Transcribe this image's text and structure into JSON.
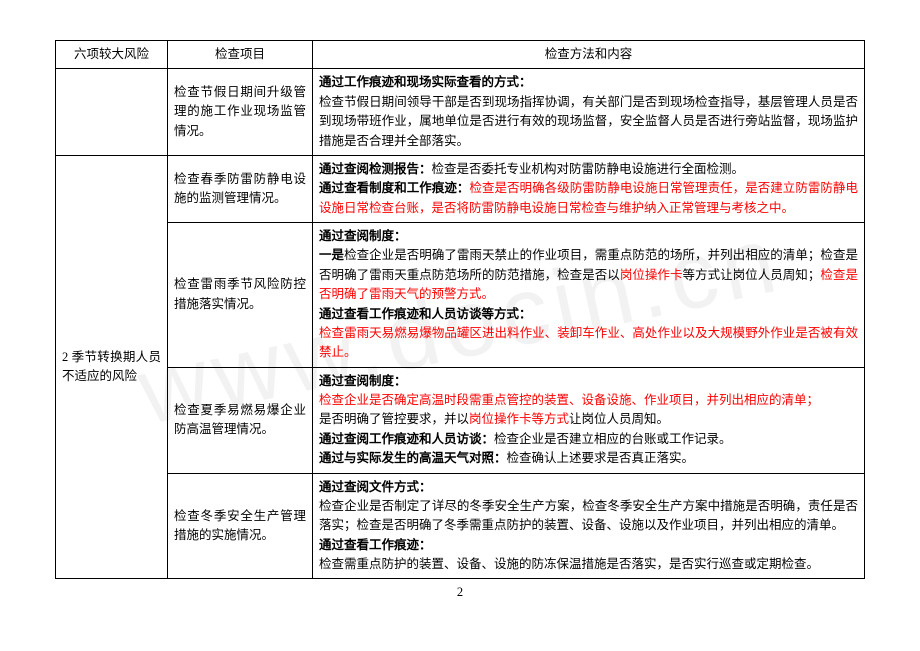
{
  "watermark": "www.docin.cn",
  "pageNumber": "2",
  "header": {
    "c1": "六项较大风险",
    "c2": "检查项目",
    "c3": "检查方法和内容"
  },
  "colA": {
    "row2": "2 季节转换期人员不适应的风险"
  },
  "colB": {
    "r1": "检查节假日期间升级管理的施工作业现场监管情况。",
    "r2": "检查春季防雷防静电设施的监测管理情况。",
    "r3": "检查雷雨季节风险防控措施落实情况。",
    "r4": "检查夏季易燃易爆企业防高温管理情况。",
    "r5": "检查冬季安全生产管理措施的实施情况。"
  },
  "colC": {
    "r1": {
      "l1": "通过工作痕迹和现场实际查看的方式：",
      "l2": "检查节假日期间领导干部是否到现场指挥协调，有关部门是否到现场检查指导，基层管理人员是否到现场带班作业，属地单位是否进行有效的现场监督，安全监督人员是否进行旁站监督，现场监护措施是否合理并全部落实。"
    },
    "r2": {
      "l1a": "通过查阅检测报告：",
      "l1b": "检查是否委托专业机构对防雷防静电设施进行全面检测。",
      "l2a": "通过查看制度和工作痕迹：",
      "l2b": "检查是否明确各级防雷防静电设施日常管理责任，是否建立防雷防静电设施日常检查台账，是否将防雷防静电设施日常检查与维护纳入正常管理与考核之中。"
    },
    "r3": {
      "l1": "通过查阅制度：",
      "l2a": "一是",
      "l2b": "检查企业是否明确了雷雨天禁止的作业项目，需重点防范的场所，并列出相应的清单；检查是否明确了雷雨天重点防范场所的防范措施，检查是否以",
      "l2c": "岗位操作卡",
      "l2d": "等方式让岗位人员周知；",
      "l2e": "检查是否明确了雷雨天气的预警方式。",
      "l3": "通过查看工作痕迹和人员访谈等方式：",
      "l4": "检查雷雨天易燃易爆物品罐区进出料作业、装卸车作业、高处作业以及大规模野外作业是否被有效禁止。"
    },
    "r4": {
      "l1": "通过查阅制度：",
      "l2a": "检查企业是否确定高温时段需重点管控的装置、设备设施、作业项目，并列出相应的清单；",
      "l2b": "是否明确了管控要求，并以",
      "l2c": "岗位操作卡等方式",
      "l2d": "让岗位人员周知。",
      "l3a": "通过查阅工作痕迹和人员访谈：",
      "l3b": "检查企业是否建立相应的台账或工作记录。",
      "l4a": "通过与实际发生的高温天气对照：",
      "l4b": "检查确认上述要求是否真正落实。"
    },
    "r5": {
      "l1": "通过查阅文件方式：",
      "l2": "检查企业是否制定了详尽的冬季安全生产方案，检查冬季安全生产方案中措施是否明确，责任是否落实；检查是否明确了冬季需重点防护的装置、设备、设施以及作业项目，并列出相应的清单。",
      "l3": "通过查看工作痕迹：",
      "l4": "检查需重点防护的装置、设备、设施的防冻保温措施是否落实，是否实行巡查或定期检查。"
    }
  }
}
